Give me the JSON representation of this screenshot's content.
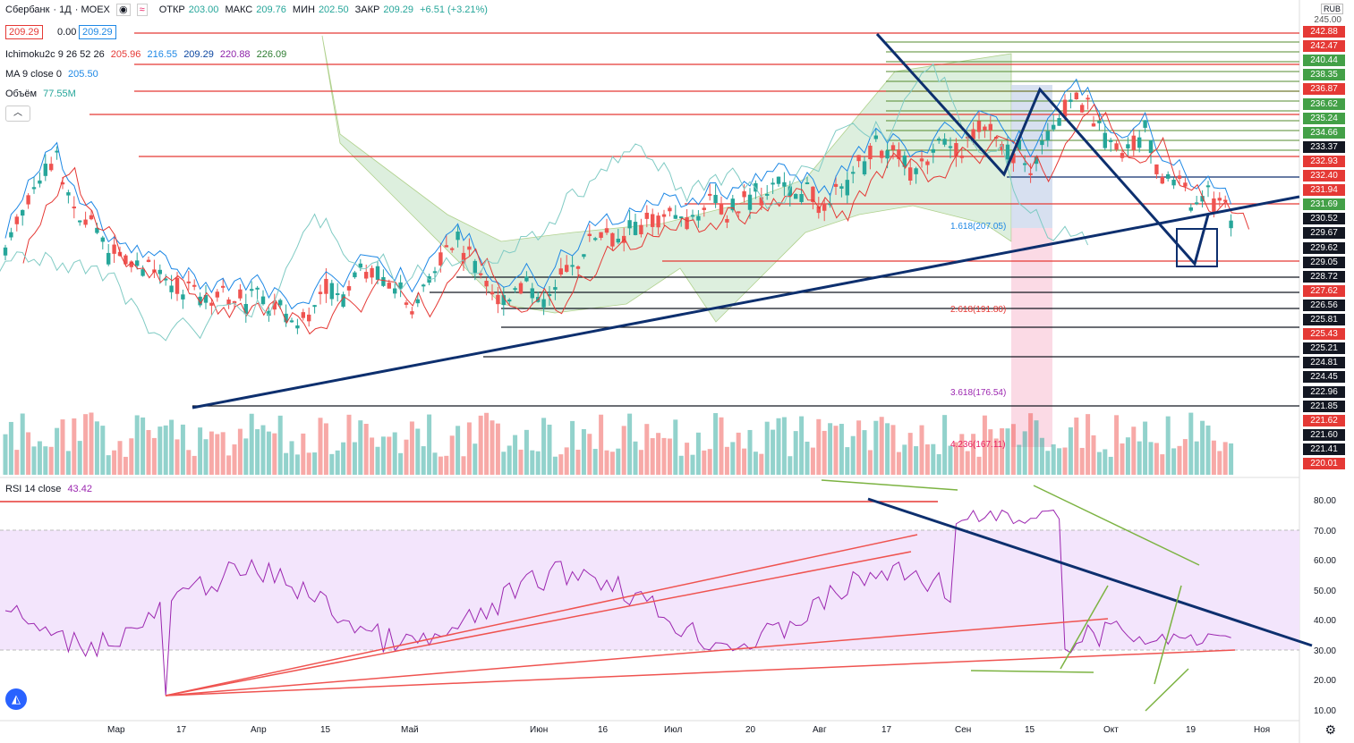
{
  "header": {
    "symbol": "Сбербанк",
    "interval": "1Д",
    "exchange": "MOEX",
    "open_label": "ОТКР",
    "open_value": "203.00",
    "high_label": "МАКС",
    "high_value": "209.76",
    "low_label": "МИН",
    "low_value": "202.50",
    "close_label": "ЗАКР",
    "close_value": "209.29",
    "change": "+6.51 (+3.21%)"
  },
  "price_boxes": {
    "bid": "209.29",
    "spread": "0.00",
    "ask": "209.29"
  },
  "indicators": {
    "ichimoku_name": "Ichimoku2c 9 26 52 26",
    "ichimoku_values": [
      "205.96",
      "216.55",
      "209.29",
      "220.88",
      "226.09"
    ],
    "ichimoku_colors": [
      "#e53935",
      "#1e88e5",
      "#0d47a1",
      "#8e24aa",
      "#2e7d32"
    ],
    "ma_name": "MA 9 close 0",
    "ma_value": "205.50",
    "volume_name": "Объём",
    "volume_value": "77.55M"
  },
  "currency": "RUB",
  "rsi": {
    "name": "RSI 14 close",
    "value": "43.42",
    "levels": [
      "80.00",
      "70.00",
      "60.00",
      "50.00",
      "40.00",
      "30.00",
      "20.00",
      "10.00"
    ]
  },
  "price_axis": {
    "top_label": "245.00",
    "tags": [
      {
        "v": "242.88",
        "c": "#e53935"
      },
      {
        "v": "242.47",
        "c": "#e53935"
      },
      {
        "v": "240.44",
        "c": "#43a047"
      },
      {
        "v": "238.35",
        "c": "#43a047"
      },
      {
        "v": "236.87",
        "c": "#e53935"
      },
      {
        "v": "236.62",
        "c": "#43a047"
      },
      {
        "v": "235.24",
        "c": "#43a047"
      },
      {
        "v": "234.66",
        "c": "#43a047"
      },
      {
        "v": "233.37",
        "c": "#131722"
      },
      {
        "v": "232.93",
        "c": "#e53935"
      },
      {
        "v": "232.40",
        "c": "#e53935"
      },
      {
        "v": "231.94",
        "c": "#e53935"
      },
      {
        "v": "231.69",
        "c": "#43a047"
      },
      {
        "v": "230.52",
        "c": "#131722"
      },
      {
        "v": "229.67",
        "c": "#131722"
      },
      {
        "v": "229.62",
        "c": "#131722"
      },
      {
        "v": "229.05",
        "c": "#131722"
      },
      {
        "v": "228.72",
        "c": "#131722"
      },
      {
        "v": "227.62",
        "c": "#e53935"
      },
      {
        "v": "226.56",
        "c": "#131722"
      },
      {
        "v": "225.81",
        "c": "#131722"
      },
      {
        "v": "225.43",
        "c": "#e53935"
      },
      {
        "v": "225.21",
        "c": "#131722"
      },
      {
        "v": "224.81",
        "c": "#131722"
      },
      {
        "v": "224.45",
        "c": "#131722"
      },
      {
        "v": "222.96",
        "c": "#131722"
      },
      {
        "v": "221.85",
        "c": "#131722"
      },
      {
        "v": "221.62",
        "c": "#e53935"
      },
      {
        "v": "221.60",
        "c": "#131722"
      },
      {
        "v": "221.41",
        "c": "#131722"
      },
      {
        "v": "220.01",
        "c": "#e53935"
      }
    ]
  },
  "fib_labels": [
    "1.618(207.05)",
    "2.618(191.80)",
    "3.618(176.54)",
    "4.236(167.11)"
  ],
  "time_axis": [
    "Мар",
    "17",
    "Апр",
    "15",
    "Май",
    "Июн",
    "16",
    "Июл",
    "20",
    "Авг",
    "17",
    "Сен",
    "15",
    "Окт",
    "19",
    "Ноя"
  ],
  "colors": {
    "up": "#26a69a",
    "down": "#ef5350",
    "trend": "#0d2f6e",
    "kumo": "#c8e6c9",
    "rsi": "#9c27b0",
    "rsi_band": "#f3e5fc"
  }
}
